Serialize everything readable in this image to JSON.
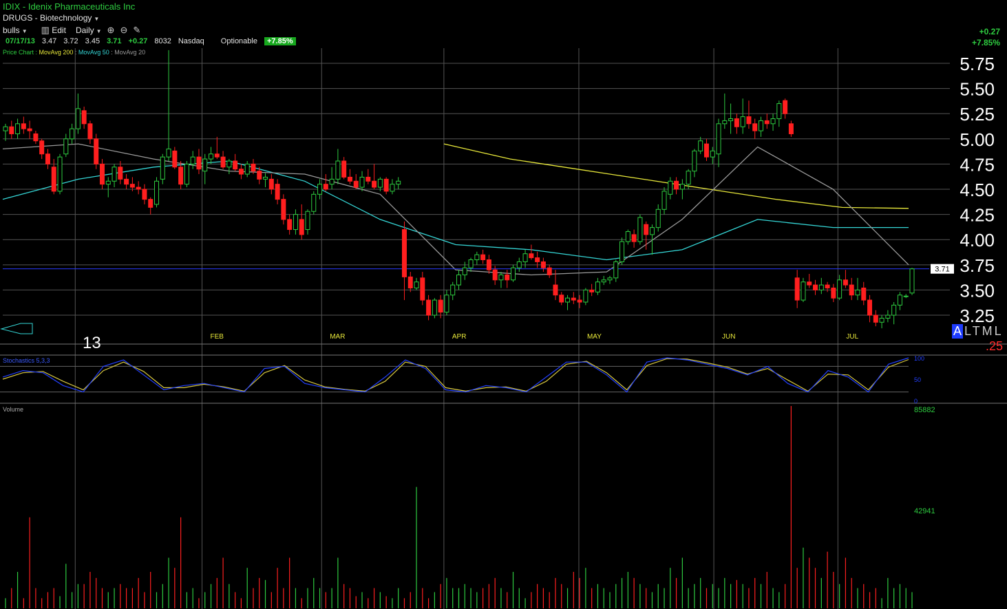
{
  "header": {
    "title": "IDIX - Idenix Pharmaceuticals Inc",
    "group": "DRUGS - Biotechnology",
    "toolbar": {
      "list": "bulls",
      "edit": "Edit",
      "period": "Daily",
      "zoom_in_icon": "zoom-in-icon",
      "zoom_out_icon": "zoom-out-icon",
      "draw_icon": "pencil-icon"
    },
    "quote": {
      "date": "07/17/13",
      "open": "3.47",
      "high": "3.72",
      "low": "3.45",
      "last": "3.71",
      "change": "+0.27",
      "volume": "8032",
      "exchange": "Nasdaq",
      "optionable": "Optionable",
      "pct_change": "+7.85%"
    },
    "legend": {
      "prefix": "Price Chart :",
      "ma200": "MovAvg 200",
      "ma50": "MovAvg 50",
      "ma20": "MovAvg 20"
    },
    "right_change_abs": "+0.27",
    "right_change_pct": "+7.85%"
  },
  "colors": {
    "up": "#2ecc40",
    "down": "#ff1f1f",
    "ma200": "#e8e83a",
    "ma50": "#35d7d7",
    "ma20": "#9a9a9a",
    "price_line": "#2b3cff",
    "grid": "#555555",
    "stoch_k": "#2340ff",
    "stoch_d": "#d8c840"
  },
  "chart_data": {
    "type": "candlestick",
    "y_ticks": [
      "5.75",
      "5.50",
      "5.25",
      "5.00",
      "4.75",
      "4.50",
      "4.25",
      "4.00",
      "3.75",
      "3.50",
      "3.25"
    ],
    "ylim": [
      3.1,
      5.9
    ],
    "x_labels": [
      "FEB",
      "MAR",
      "APR",
      "MAY",
      "JUN",
      "JUL"
    ],
    "year_label": "13",
    "last_price_label": "3.71",
    "current_price": 3.71,
    "candles": [
      {
        "o": 5.08,
        "h": 5.15,
        "l": 4.98,
        "c": 5.12
      },
      {
        "o": 5.12,
        "h": 5.18,
        "l": 5.0,
        "c": 5.05
      },
      {
        "o": 5.05,
        "h": 5.2,
        "l": 5.0,
        "c": 5.15
      },
      {
        "o": 5.15,
        "h": 5.22,
        "l": 5.05,
        "c": 5.1
      },
      {
        "o": 5.1,
        "h": 5.18,
        "l": 5.0,
        "c": 5.08
      },
      {
        "o": 5.05,
        "h": 5.08,
        "l": 4.95,
        "c": 4.98
      },
      {
        "o": 4.98,
        "h": 5.0,
        "l": 4.8,
        "c": 4.85
      },
      {
        "o": 4.85,
        "h": 4.9,
        "l": 4.7,
        "c": 4.75
      },
      {
        "o": 4.72,
        "h": 4.8,
        "l": 4.45,
        "c": 4.48
      },
      {
        "o": 4.48,
        "h": 4.85,
        "l": 4.45,
        "c": 4.82
      },
      {
        "o": 4.85,
        "h": 5.05,
        "l": 4.82,
        "c": 5.0
      },
      {
        "o": 5.0,
        "h": 5.15,
        "l": 4.95,
        "c": 5.1
      },
      {
        "o": 5.1,
        "h": 5.45,
        "l": 5.05,
        "c": 5.3
      },
      {
        "o": 5.28,
        "h": 5.32,
        "l": 5.1,
        "c": 5.15
      },
      {
        "o": 5.15,
        "h": 5.18,
        "l": 4.95,
        "c": 5.0
      },
      {
        "o": 5.0,
        "h": 5.05,
        "l": 4.7,
        "c": 4.75
      },
      {
        "o": 4.75,
        "h": 4.8,
        "l": 4.5,
        "c": 4.55
      },
      {
        "o": 4.55,
        "h": 4.62,
        "l": 4.42,
        "c": 4.58
      },
      {
        "o": 4.58,
        "h": 4.75,
        "l": 4.52,
        "c": 4.72
      },
      {
        "o": 4.72,
        "h": 4.78,
        "l": 4.55,
        "c": 4.6
      },
      {
        "o": 4.6,
        "h": 4.65,
        "l": 4.5,
        "c": 4.55
      },
      {
        "o": 4.55,
        "h": 4.62,
        "l": 4.48,
        "c": 4.52
      },
      {
        "o": 4.52,
        "h": 4.58,
        "l": 4.45,
        "c": 4.5
      },
      {
        "o": 4.5,
        "h": 4.55,
        "l": 4.35,
        "c": 4.4
      },
      {
        "o": 4.4,
        "h": 4.42,
        "l": 4.25,
        "c": 4.32
      },
      {
        "o": 4.35,
        "h": 4.62,
        "l": 4.32,
        "c": 4.58
      },
      {
        "o": 4.6,
        "h": 4.85,
        "l": 4.55,
        "c": 4.82
      },
      {
        "o": 4.82,
        "h": 5.88,
        "l": 4.78,
        "c": 4.9
      },
      {
        "o": 4.88,
        "h": 4.92,
        "l": 4.7,
        "c": 4.72
      },
      {
        "o": 4.72,
        "h": 4.78,
        "l": 4.5,
        "c": 4.55
      },
      {
        "o": 4.55,
        "h": 4.78,
        "l": 4.52,
        "c": 4.75
      },
      {
        "o": 4.75,
        "h": 4.88,
        "l": 4.7,
        "c": 4.82
      },
      {
        "o": 4.82,
        "h": 4.9,
        "l": 4.65,
        "c": 4.7
      },
      {
        "o": 4.68,
        "h": 4.85,
        "l": 4.55,
        "c": 4.8
      },
      {
        "o": 4.8,
        "h": 4.92,
        "l": 4.75,
        "c": 4.85
      },
      {
        "o": 4.85,
        "h": 5.02,
        "l": 4.8,
        "c": 4.82
      },
      {
        "o": 4.82,
        "h": 4.88,
        "l": 4.7,
        "c": 4.72
      },
      {
        "o": 4.72,
        "h": 4.8,
        "l": 4.65,
        "c": 4.78
      },
      {
        "o": 4.78,
        "h": 4.85,
        "l": 4.68,
        "c": 4.7
      },
      {
        "o": 4.7,
        "h": 4.75,
        "l": 4.6,
        "c": 4.65
      },
      {
        "o": 4.65,
        "h": 4.78,
        "l": 4.62,
        "c": 4.75
      },
      {
        "o": 4.75,
        "h": 4.8,
        "l": 4.65,
        "c": 4.68
      },
      {
        "o": 4.68,
        "h": 4.72,
        "l": 4.55,
        "c": 4.6
      },
      {
        "o": 4.6,
        "h": 4.66,
        "l": 4.52,
        "c": 4.62
      },
      {
        "o": 4.6,
        "h": 4.65,
        "l": 4.45,
        "c": 4.5
      },
      {
        "o": 4.55,
        "h": 4.6,
        "l": 4.35,
        "c": 4.4
      },
      {
        "o": 4.4,
        "h": 4.45,
        "l": 4.15,
        "c": 4.2
      },
      {
        "o": 4.2,
        "h": 4.25,
        "l": 4.05,
        "c": 4.1
      },
      {
        "o": 4.1,
        "h": 4.3,
        "l": 4.05,
        "c": 4.25
      },
      {
        "o": 4.2,
        "h": 4.35,
        "l": 4.0,
        "c": 4.05
      },
      {
        "o": 4.1,
        "h": 4.3,
        "l": 4.05,
        "c": 4.28
      },
      {
        "o": 4.28,
        "h": 4.48,
        "l": 4.25,
        "c": 4.45
      },
      {
        "o": 4.45,
        "h": 4.6,
        "l": 4.4,
        "c": 4.55
      },
      {
        "o": 4.55,
        "h": 4.65,
        "l": 4.48,
        "c": 4.5
      },
      {
        "o": 4.55,
        "h": 4.72,
        "l": 4.5,
        "c": 4.6
      },
      {
        "o": 4.6,
        "h": 4.9,
        "l": 4.55,
        "c": 4.78
      },
      {
        "o": 4.78,
        "h": 4.82,
        "l": 4.6,
        "c": 4.62
      },
      {
        "o": 4.62,
        "h": 4.7,
        "l": 4.55,
        "c": 4.58
      },
      {
        "o": 4.58,
        "h": 4.65,
        "l": 4.5,
        "c": 4.52
      },
      {
        "o": 4.52,
        "h": 4.68,
        "l": 4.48,
        "c": 4.62
      },
      {
        "o": 4.62,
        "h": 4.7,
        "l": 4.55,
        "c": 4.58
      },
      {
        "o": 4.58,
        "h": 4.75,
        "l": 4.5,
        "c": 4.52
      },
      {
        "o": 4.52,
        "h": 4.62,
        "l": 4.48,
        "c": 4.6
      },
      {
        "o": 4.6,
        "h": 4.62,
        "l": 4.45,
        "c": 4.48
      },
      {
        "o": 4.48,
        "h": 4.6,
        "l": 4.45,
        "c": 4.55
      },
      {
        "o": 4.55,
        "h": 4.62,
        "l": 4.5,
        "c": 4.58
      },
      {
        "o": 4.1,
        "h": 4.18,
        "l": 3.4,
        "c": 3.63
      },
      {
        "o": 3.63,
        "h": 3.68,
        "l": 3.48,
        "c": 3.52
      },
      {
        "o": 3.52,
        "h": 3.62,
        "l": 3.5,
        "c": 3.58
      },
      {
        "o": 3.62,
        "h": 3.68,
        "l": 3.35,
        "c": 3.4
      },
      {
        "o": 3.4,
        "h": 3.45,
        "l": 3.2,
        "c": 3.25
      },
      {
        "o": 3.25,
        "h": 3.42,
        "l": 3.22,
        "c": 3.4
      },
      {
        "o": 3.4,
        "h": 3.45,
        "l": 3.22,
        "c": 3.28
      },
      {
        "o": 3.28,
        "h": 3.5,
        "l": 3.25,
        "c": 3.45
      },
      {
        "o": 3.45,
        "h": 3.58,
        "l": 3.4,
        "c": 3.55
      },
      {
        "o": 3.55,
        "h": 3.7,
        "l": 3.5,
        "c": 3.65
      },
      {
        "o": 3.65,
        "h": 3.78,
        "l": 3.6,
        "c": 3.72
      },
      {
        "o": 3.72,
        "h": 3.82,
        "l": 3.68,
        "c": 3.8
      },
      {
        "o": 3.8,
        "h": 3.88,
        "l": 3.75,
        "c": 3.85
      },
      {
        "o": 3.85,
        "h": 3.9,
        "l": 3.76,
        "c": 3.8
      },
      {
        "o": 3.8,
        "h": 3.85,
        "l": 3.66,
        "c": 3.7
      },
      {
        "o": 3.7,
        "h": 3.74,
        "l": 3.55,
        "c": 3.6
      },
      {
        "o": 3.6,
        "h": 3.68,
        "l": 3.52,
        "c": 3.65
      },
      {
        "o": 3.65,
        "h": 3.7,
        "l": 3.52,
        "c": 3.6
      },
      {
        "o": 3.6,
        "h": 3.75,
        "l": 3.58,
        "c": 3.72
      },
      {
        "o": 3.72,
        "h": 3.82,
        "l": 3.68,
        "c": 3.78
      },
      {
        "o": 3.78,
        "h": 3.9,
        "l": 3.72,
        "c": 3.86
      },
      {
        "o": 3.86,
        "h": 3.95,
        "l": 3.8,
        "c": 3.82
      },
      {
        "o": 3.82,
        "h": 3.88,
        "l": 3.72,
        "c": 3.78
      },
      {
        "o": 3.78,
        "h": 3.82,
        "l": 3.68,
        "c": 3.72
      },
      {
        "o": 3.72,
        "h": 3.75,
        "l": 3.62,
        "c": 3.65
      },
      {
        "o": 3.55,
        "h": 3.7,
        "l": 3.4,
        "c": 3.45
      },
      {
        "o": 3.45,
        "h": 3.48,
        "l": 3.35,
        "c": 3.38
      },
      {
        "o": 3.38,
        "h": 3.45,
        "l": 3.3,
        "c": 3.42
      },
      {
        "o": 3.42,
        "h": 3.48,
        "l": 3.36,
        "c": 3.4
      },
      {
        "o": 3.4,
        "h": 3.45,
        "l": 3.32,
        "c": 3.38
      },
      {
        "o": 3.38,
        "h": 3.52,
        "l": 3.35,
        "c": 3.5
      },
      {
        "o": 3.5,
        "h": 3.56,
        "l": 3.44,
        "c": 3.48
      },
      {
        "o": 3.48,
        "h": 3.62,
        "l": 3.45,
        "c": 3.58
      },
      {
        "o": 3.58,
        "h": 3.64,
        "l": 3.55,
        "c": 3.6
      },
      {
        "o": 3.6,
        "h": 3.64,
        "l": 3.56,
        "c": 3.62
      },
      {
        "o": 3.62,
        "h": 3.8,
        "l": 3.58,
        "c": 3.78
      },
      {
        "o": 3.78,
        "h": 4.02,
        "l": 3.75,
        "c": 3.98
      },
      {
        "o": 3.98,
        "h": 4.1,
        "l": 3.95,
        "c": 4.08
      },
      {
        "o": 4.05,
        "h": 4.1,
        "l": 3.92,
        "c": 3.98
      },
      {
        "o": 3.98,
        "h": 4.25,
        "l": 3.95,
        "c": 4.22
      },
      {
        "o": 4.15,
        "h": 4.18,
        "l": 3.9,
        "c": 4.05
      },
      {
        "o": 4.05,
        "h": 4.15,
        "l": 3.85,
        "c": 4.12
      },
      {
        "o": 4.12,
        "h": 4.35,
        "l": 4.08,
        "c": 4.3
      },
      {
        "o": 4.3,
        "h": 4.52,
        "l": 4.25,
        "c": 4.48
      },
      {
        "o": 4.45,
        "h": 4.62,
        "l": 4.4,
        "c": 4.58
      },
      {
        "o": 4.58,
        "h": 4.62,
        "l": 4.45,
        "c": 4.5
      },
      {
        "o": 4.5,
        "h": 4.6,
        "l": 4.4,
        "c": 4.55
      },
      {
        "o": 4.55,
        "h": 4.7,
        "l": 4.5,
        "c": 4.68
      },
      {
        "o": 4.68,
        "h": 4.9,
        "l": 4.62,
        "c": 4.88
      },
      {
        "o": 4.88,
        "h": 5.02,
        "l": 4.85,
        "c": 4.98
      },
      {
        "o": 4.95,
        "h": 5.0,
        "l": 4.78,
        "c": 4.82
      },
      {
        "o": 4.82,
        "h": 4.92,
        "l": 4.75,
        "c": 4.88
      },
      {
        "o": 4.85,
        "h": 5.2,
        "l": 4.72,
        "c": 5.15
      },
      {
        "o": 5.15,
        "h": 5.45,
        "l": 5.1,
        "c": 5.18
      },
      {
        "o": 5.18,
        "h": 5.35,
        "l": 5.05,
        "c": 5.2
      },
      {
        "o": 5.2,
        "h": 5.25,
        "l": 5.05,
        "c": 5.12
      },
      {
        "o": 5.12,
        "h": 5.4,
        "l": 5.05,
        "c": 5.22
      },
      {
        "o": 5.22,
        "h": 5.38,
        "l": 5.1,
        "c": 5.15
      },
      {
        "o": 5.15,
        "h": 5.2,
        "l": 5.0,
        "c": 5.08
      },
      {
        "o": 5.08,
        "h": 5.22,
        "l": 5.02,
        "c": 5.18
      },
      {
        "o": 5.18,
        "h": 5.25,
        "l": 5.1,
        "c": 5.15
      },
      {
        "o": 5.15,
        "h": 5.25,
        "l": 5.08,
        "c": 5.2
      },
      {
        "o": 5.2,
        "h": 5.38,
        "l": 5.12,
        "c": 5.35
      },
      {
        "o": 5.38,
        "h": 5.4,
        "l": 5.2,
        "c": 5.25
      },
      {
        "o": 5.15,
        "h": 5.18,
        "l": 5.02,
        "c": 5.05
      },
      {
        "o": 3.62,
        "h": 3.7,
        "l": 3.32,
        "c": 3.4
      },
      {
        "o": 3.4,
        "h": 3.62,
        "l": 3.38,
        "c": 3.58
      },
      {
        "o": 3.58,
        "h": 3.66,
        "l": 3.52,
        "c": 3.55
      },
      {
        "o": 3.55,
        "h": 3.6,
        "l": 3.45,
        "c": 3.5
      },
      {
        "o": 3.5,
        "h": 3.62,
        "l": 3.46,
        "c": 3.55
      },
      {
        "o": 3.55,
        "h": 3.58,
        "l": 3.48,
        "c": 3.52
      },
      {
        "o": 3.52,
        "h": 3.56,
        "l": 3.38,
        "c": 3.42
      },
      {
        "o": 3.42,
        "h": 3.65,
        "l": 3.4,
        "c": 3.6
      },
      {
        "o": 3.6,
        "h": 3.7,
        "l": 3.52,
        "c": 3.55
      },
      {
        "o": 3.55,
        "h": 3.62,
        "l": 3.4,
        "c": 3.45
      },
      {
        "o": 3.45,
        "h": 3.62,
        "l": 3.4,
        "c": 3.5
      },
      {
        "o": 3.52,
        "h": 3.58,
        "l": 3.35,
        "c": 3.4
      },
      {
        "o": 3.4,
        "h": 3.45,
        "l": 3.18,
        "c": 3.25
      },
      {
        "o": 3.25,
        "h": 3.3,
        "l": 3.14,
        "c": 3.18
      },
      {
        "o": 3.18,
        "h": 3.25,
        "l": 3.12,
        "c": 3.22
      },
      {
        "o": 3.22,
        "h": 3.3,
        "l": 3.18,
        "c": 3.25
      },
      {
        "o": 3.25,
        "h": 3.38,
        "l": 3.16,
        "c": 3.35
      },
      {
        "o": 3.35,
        "h": 3.48,
        "l": 3.3,
        "c": 3.45
      },
      {
        "o": 3.44,
        "h": 3.46,
        "l": 3.42,
        "c": 3.44
      },
      {
        "o": 3.47,
        "h": 3.72,
        "l": 3.45,
        "c": 3.71
      }
    ],
    "ma200": [
      4.95,
      4.8,
      4.7,
      4.6,
      4.5,
      4.4,
      4.32,
      4.31
    ],
    "ma50": [
      4.4,
      4.6,
      4.72,
      4.78,
      4.58,
      4.2,
      3.95,
      3.9,
      3.8,
      3.9,
      4.2,
      4.12,
      4.12
    ],
    "ma20": [
      4.9,
      4.95,
      4.8,
      4.68,
      4.65,
      4.45,
      3.7,
      3.65,
      3.68,
      4.2,
      4.92,
      4.5,
      3.75
    ],
    "stochastic": {
      "label": "Stochastics 5,3,3",
      "scale": [
        "100",
        "50",
        "0"
      ],
      "k": [
        55,
        70,
        65,
        35,
        20,
        80,
        95,
        60,
        25,
        35,
        40,
        30,
        20,
        75,
        80,
        40,
        30,
        25,
        20,
        55,
        95,
        75,
        25,
        20,
        35,
        30,
        20,
        55,
        90,
        90,
        60,
        20,
        90,
        100,
        95,
        85,
        75,
        60,
        80,
        40,
        20,
        70,
        55,
        20,
        85,
        100
      ],
      "d": [
        50,
        65,
        68,
        45,
        25,
        70,
        90,
        68,
        30,
        30,
        38,
        32,
        22,
        65,
        82,
        48,
        32,
        26,
        22,
        45,
        90,
        80,
        30,
        22,
        30,
        32,
        22,
        45,
        85,
        92,
        65,
        25,
        82,
        98,
        97,
        88,
        78,
        62,
        75,
        48,
        22,
        62,
        60,
        25,
        78,
        96
      ]
    },
    "volume": {
      "label": "Volume",
      "scale": [
        "85882",
        "42941",
        "0"
      ],
      "max": 85882,
      "values": [
        5,
        10,
        18,
        5,
        45,
        10,
        5,
        8,
        10,
        6,
        22,
        8,
        12,
        12,
        18,
        15,
        10,
        8,
        10,
        12,
        10,
        10,
        15,
        8,
        18,
        8,
        12,
        25,
        20,
        45,
        8,
        10,
        5,
        8,
        12,
        15,
        25,
        12,
        8,
        5,
        20,
        10,
        15,
        14,
        8,
        20,
        10,
        25,
        10,
        5,
        10,
        15,
        10,
        8,
        10,
        25,
        12,
        10,
        6,
        8,
        5,
        10,
        8,
        6,
        5,
        10,
        5,
        8,
        60,
        10,
        5,
        8,
        12,
        15,
        10,
        8,
        10,
        12,
        10,
        8,
        10,
        12,
        15,
        10,
        8,
        18,
        10,
        5,
        8,
        12,
        10,
        8,
        15,
        12,
        10,
        18,
        15,
        20,
        10,
        12,
        10,
        8,
        12,
        15,
        18,
        15,
        12,
        10,
        8,
        12,
        10,
        20,
        15,
        25,
        10,
        12,
        15,
        10,
        12,
        10,
        15,
        12,
        14,
        12,
        10,
        15,
        12,
        18,
        10,
        8,
        12,
        100,
        20,
        30,
        25,
        20,
        15,
        28,
        18,
        12,
        25,
        15,
        10,
        12,
        8,
        10,
        5,
        15,
        10,
        12,
        10,
        8
      ]
    }
  },
  "alm": {
    "a": "A",
    "rest": "LTML"
  },
  "sub_value": ".25"
}
